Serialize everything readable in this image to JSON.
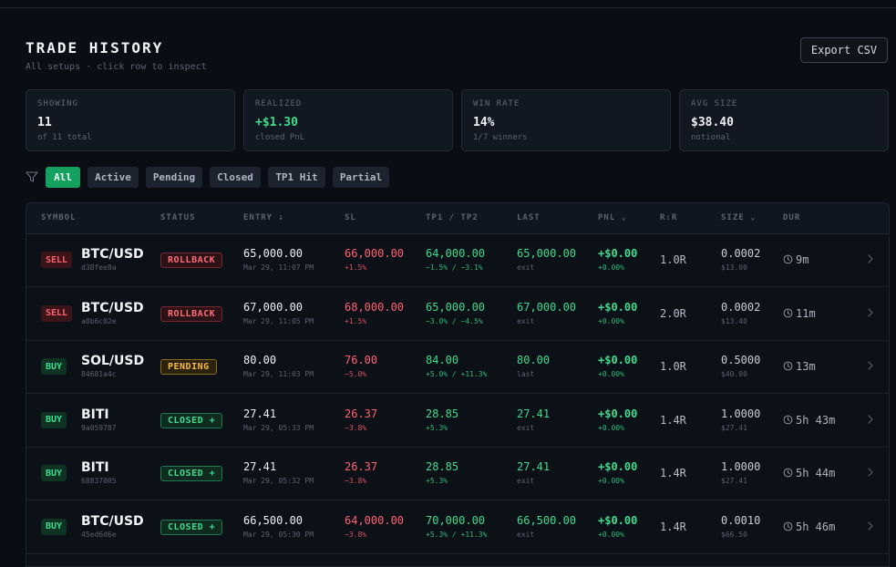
{
  "header": {
    "title": "TRADE HISTORY",
    "subtitle": "All setups · click row to inspect",
    "export_label": "Export CSV"
  },
  "stats": [
    {
      "label": "SHOWING",
      "value": "11",
      "sub": "of 11 total"
    },
    {
      "label": "REALIZED",
      "value": "+$1.30",
      "sub": "closed PnL"
    },
    {
      "label": "WIN RATE",
      "value": "14%",
      "sub": "1/7 winners"
    },
    {
      "label": "AVG SIZE",
      "value": "$38.40",
      "sub": "notional"
    }
  ],
  "filters": {
    "active": "All",
    "items": [
      "All",
      "Active",
      "Pending",
      "Closed",
      "TP1 Hit",
      "Partial"
    ]
  },
  "columns": [
    "SYMBOL",
    "STATUS",
    "ENTRY ↓",
    "SL",
    "TP1 / TP2",
    "LAST",
    "PNL ⌄",
    "R:R",
    "SIZE ⌄",
    "DUR"
  ],
  "rows": [
    {
      "side": "SELL",
      "symbol": "BTC/USD",
      "hash": "d38fee8a",
      "status": "ROLLBACK",
      "entry": "65,000.00",
      "entry_time": "Mar 29, 11:07 PM",
      "sl": "66,000.00",
      "sl_pct": "+1.5%",
      "tp": "64,000.00",
      "tp_pct": "−1.5% / −3.1%",
      "last": "65,000.00",
      "last_sub": "exit",
      "pnl": "+$0.00",
      "pnl_pct": "+0.00%",
      "rr": "1.0R",
      "size": "0.0002",
      "size_usd": "$13.00",
      "dur": "9m"
    },
    {
      "side": "SELL",
      "symbol": "BTC/USD",
      "hash": "a8b6c02e",
      "status": "ROLLBACK",
      "entry": "67,000.00",
      "entry_time": "Mar 29, 11:05 PM",
      "sl": "68,000.00",
      "sl_pct": "+1.5%",
      "tp": "65,000.00",
      "tp_pct": "−3.0% / −4.5%",
      "last": "67,000.00",
      "last_sub": "exit",
      "pnl": "+$0.00",
      "pnl_pct": "+0.00%",
      "rr": "2.0R",
      "size": "0.0002",
      "size_usd": "$13.40",
      "dur": "11m"
    },
    {
      "side": "BUY",
      "symbol": "SOL/USD",
      "hash": "84681a4c",
      "status": "PENDING",
      "entry": "80.00",
      "entry_time": "Mar 29, 11:03 PM",
      "sl": "76.00",
      "sl_pct": "−5.0%",
      "tp": "84.00",
      "tp_pct": "+5.0% / +11.3%",
      "last": "80.00",
      "last_sub": "last",
      "pnl": "+$0.00",
      "pnl_pct": "+0.00%",
      "rr": "1.0R",
      "size": "0.5000",
      "size_usd": "$40.00",
      "dur": "13m"
    },
    {
      "side": "BUY",
      "symbol": "BITI",
      "hash": "9a059787",
      "status": "CLOSED +",
      "entry": "27.41",
      "entry_time": "Mar 29, 05:33 PM",
      "sl": "26.37",
      "sl_pct": "−3.8%",
      "tp": "28.85",
      "tp_pct": "+5.3%",
      "last": "27.41",
      "last_sub": "exit",
      "pnl": "+$0.00",
      "pnl_pct": "+0.00%",
      "rr": "1.4R",
      "size": "1.0000",
      "size_usd": "$27.41",
      "dur": "5h 43m"
    },
    {
      "side": "BUY",
      "symbol": "BITI",
      "hash": "68837005",
      "status": "CLOSED +",
      "entry": "27.41",
      "entry_time": "Mar 29, 05:32 PM",
      "sl": "26.37",
      "sl_pct": "−3.8%",
      "tp": "28.85",
      "tp_pct": "+5.3%",
      "last": "27.41",
      "last_sub": "exit",
      "pnl": "+$0.00",
      "pnl_pct": "+0.00%",
      "rr": "1.4R",
      "size": "1.0000",
      "size_usd": "$27.41",
      "dur": "5h 44m"
    },
    {
      "side": "BUY",
      "symbol": "BTC/USD",
      "hash": "45ed6d6e",
      "status": "CLOSED +",
      "entry": "66,500.00",
      "entry_time": "Mar 29, 05:30 PM",
      "sl": "64,000.00",
      "sl_pct": "−3.8%",
      "tp": "70,000.00",
      "tp_pct": "+5.3% / +11.3%",
      "last": "66,500.00",
      "last_sub": "exit",
      "pnl": "+$0.00",
      "pnl_pct": "+0.00%",
      "rr": "1.4R",
      "size": "0.0010",
      "size_usd": "$66.50",
      "dur": "5h 46m"
    }
  ]
}
